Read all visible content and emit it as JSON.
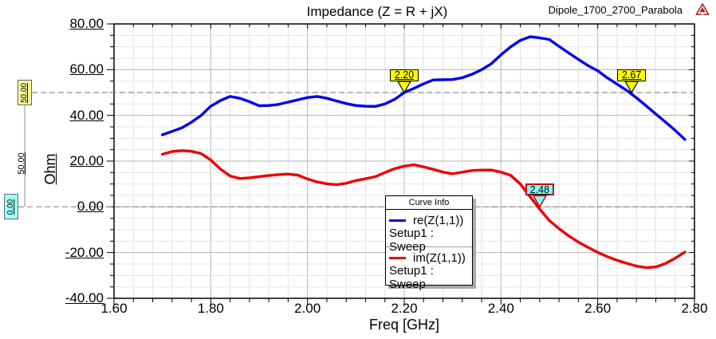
{
  "header": {
    "design_label": "Dipole_1700_2700_Parabola",
    "logo_icon": "ansoft-logo"
  },
  "axes": {
    "x_label": "Freq [GHz]",
    "y_label": "Ohm",
    "x_tick_labels": [
      "1.60",
      "1.80",
      "2.00",
      "2.20",
      "2.40",
      "2.60",
      "2.80"
    ],
    "y_tick_labels": [
      "80.00",
      "60.00",
      "40.00",
      "20.00",
      "0.00",
      "-20.00",
      "-40.00"
    ]
  },
  "reference_lines": [
    {
      "label": "50.00",
      "value": 50,
      "tag_fill": "#FFFF9E"
    },
    {
      "label": "0.00",
      "value": 0,
      "tag_fill": "#9EFFFF"
    }
  ],
  "delta_label": "50.00",
  "legend": {
    "title": "Curve Info",
    "entries": [
      {
        "label": "re(Z(1,1))",
        "sublabel": "Setup1 : Sweep",
        "color": "#0000EE"
      },
      {
        "label": "im(Z(1,1))",
        "sublabel": "Setup1 : Sweep",
        "color": "#EE0000"
      }
    ]
  },
  "colors": {
    "grid_minor": "#E4E4E4",
    "grid_major": "#B5B5B5",
    "axis": "#000000",
    "reference_dash": "#8C8C8C",
    "background": "#FFFFFF"
  },
  "chart_data": {
    "type": "line",
    "title": "Impedance (Z = R + jX)",
    "xlabel": "Freq [GHz]",
    "ylabel": "Ohm",
    "xlim": [
      1.6,
      2.8
    ],
    "ylim": [
      -40,
      80
    ],
    "x_unit": "GHz",
    "x_start": 1.7,
    "x_step": 0.02,
    "grid": {
      "x_minor": 0.04,
      "x_major": 0.2,
      "y_minor": 5,
      "y_major": 20
    },
    "legend_position": "inside-bottom-center",
    "series": [
      {
        "name": "re(Z(1,1))",
        "sublabel": "Setup1 : Sweep",
        "color": "#0000EE",
        "values": [
          31.5,
          33,
          34.5,
          37,
          40,
          44,
          46.5,
          48.3,
          47.5,
          46,
          44.2,
          44.3,
          44.8,
          45.8,
          46.8,
          47.8,
          48.3,
          47.5,
          46.3,
          45.2,
          44.3,
          44,
          43.9,
          45,
          47,
          50,
          51.8,
          53.8,
          55.5,
          55.6,
          55.7,
          56.5,
          58,
          60,
          62.6,
          66.5,
          70,
          72.8,
          74.4,
          73.9,
          73.2,
          70.2,
          67.3,
          64.5,
          61.8,
          59.5,
          56.4,
          53.7,
          50.9,
          47.7,
          44.2,
          40.6,
          37.1,
          33.5,
          29.5
        ]
      },
      {
        "name": "im(Z(1,1))",
        "sublabel": "Setup1 : Sweep",
        "color": "#EE0000",
        "values": [
          23,
          24.2,
          24.6,
          24.3,
          23.3,
          20.5,
          16.5,
          13.5,
          12.4,
          12.7,
          13.2,
          13.7,
          14.1,
          14.3,
          13.9,
          12.2,
          10.9,
          10.1,
          9.7,
          10.3,
          11.5,
          12.3,
          13.2,
          15,
          16.7,
          17.8,
          18.4,
          17.5,
          16.4,
          15.2,
          14.5,
          15.2,
          15.9,
          16.1,
          16.1,
          15.2,
          13.8,
          10,
          4.5,
          -1,
          -6,
          -9.5,
          -12.7,
          -15.4,
          -17.7,
          -19.9,
          -21.8,
          -23.4,
          -24.7,
          -25.9,
          -26.6,
          -26.3,
          -24.8,
          -22.5,
          -19.8
        ]
      }
    ],
    "markers": [
      {
        "label": "2.20",
        "x": 2.2,
        "y": 50,
        "fill": "#FFFF00",
        "border": "#000000"
      },
      {
        "label": "2.67",
        "x": 2.67,
        "y": 50,
        "fill": "#FFFF00",
        "border": "#000000"
      },
      {
        "label": "2.48",
        "x": 2.48,
        "y": 0,
        "fill": "#80FFFF",
        "border": "#D00000"
      }
    ]
  }
}
